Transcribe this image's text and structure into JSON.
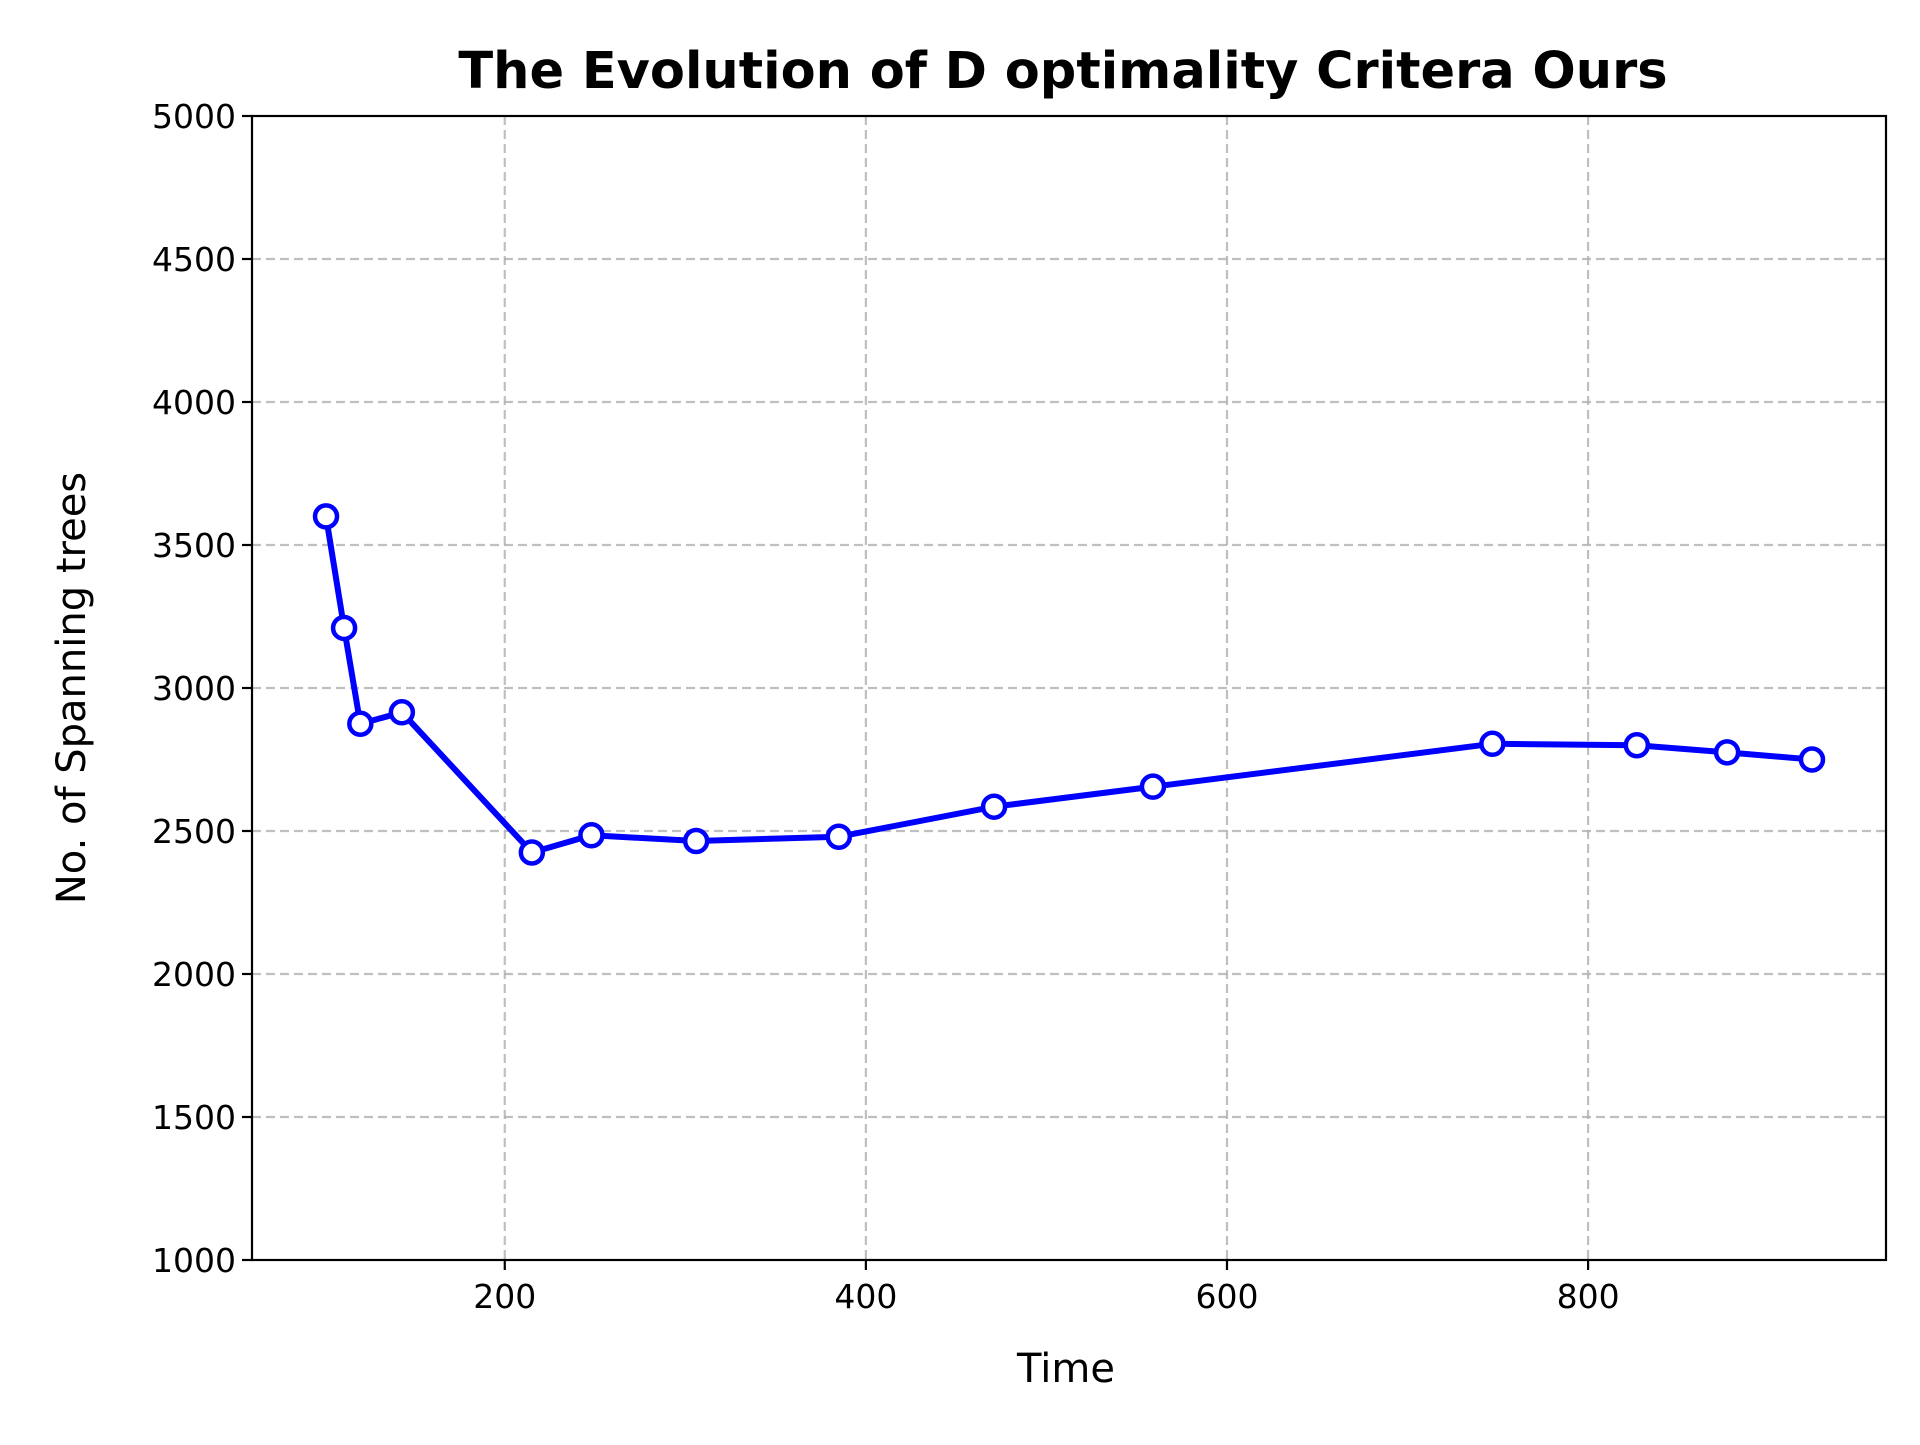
{
  "chart_data": {
    "type": "line",
    "title": "The Evolution of D optimality Critera Ours",
    "xlabel": "Time",
    "ylabel": "No. of Spanning trees",
    "xlim": [
      60,
      965
    ],
    "ylim": [
      1000,
      5000
    ],
    "xticks": [
      200,
      400,
      600,
      800
    ],
    "yticks": [
      1000,
      1500,
      2000,
      2500,
      3000,
      3500,
      4000,
      4500,
      5000
    ],
    "xtick_labels": [
      "200",
      "400",
      "600",
      "800"
    ],
    "ytick_labels": [
      "1000",
      "1500",
      "2000",
      "2500",
      "3000",
      "3500",
      "4000",
      "4500",
      "5000"
    ],
    "grid": true,
    "legend": false,
    "series": [
      {
        "color": "#0000ff",
        "marker": "circle",
        "marker_face": "#ffffff",
        "x": [
          101,
          111,
          120,
          143,
          215,
          248,
          306,
          385,
          471,
          559,
          747,
          827,
          877,
          924
        ],
        "y": [
          3600,
          3210,
          2875,
          2915,
          2425,
          2485,
          2465,
          2480,
          2585,
          2655,
          2805,
          2800,
          2775,
          2750
        ]
      }
    ]
  }
}
